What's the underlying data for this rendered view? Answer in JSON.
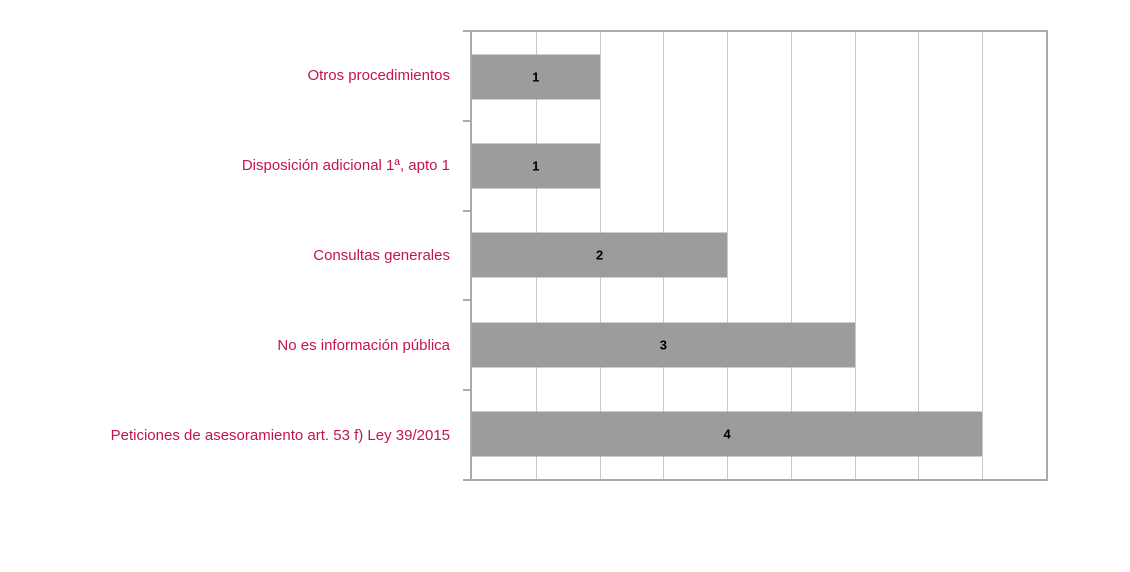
{
  "chart_data": {
    "type": "bar",
    "orientation": "horizontal",
    "title": "",
    "xlabel": "",
    "ylabel": "",
    "legend": "none",
    "grid": true,
    "categories": [
      "Otros procedimientos",
      "Disposición adicional 1ª, apto 1",
      "Consultas generales",
      "No es información pública",
      "Peticiones de asesoramiento art. 53 f) Ley 39/2015"
    ],
    "values": [
      1,
      1,
      2,
      3,
      4
    ],
    "data_labels": [
      "1",
      "1",
      "2",
      "3",
      "4"
    ],
    "xlim": [
      0,
      4.5
    ],
    "gridline_interval": 0.5,
    "colors": {
      "bar_fill": "#9c9c9c",
      "category_label": "#c41352",
      "data_label": "#000000",
      "gridline": "#c9c9c9",
      "plot_border": "#ababab",
      "background": "#ffffff"
    }
  }
}
